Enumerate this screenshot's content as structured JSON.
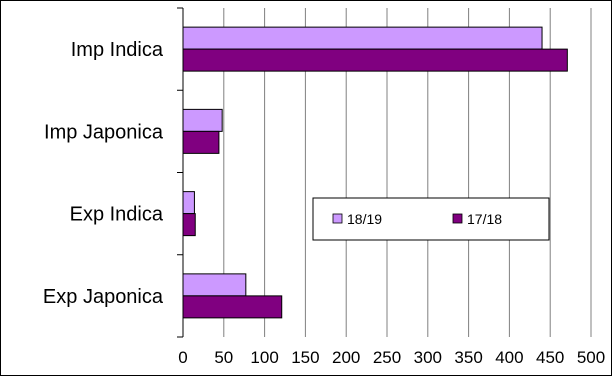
{
  "chart_data": {
    "type": "bar",
    "orientation": "horizontal",
    "categories": [
      "Imp Indica",
      "Imp Japonica",
      "Exp Indica",
      "Exp Japonica"
    ],
    "series": [
      {
        "name": "18/19",
        "values": [
          440,
          48,
          14,
          77
        ],
        "color": "#cc99ff"
      },
      {
        "name": "17/18",
        "values": [
          471,
          44,
          15,
          121
        ],
        "color": "#800080"
      }
    ],
    "x_ticks": [
      "0",
      "50",
      "100",
      "150",
      "200",
      "250",
      "300",
      "350",
      "400",
      "450",
      "500"
    ],
    "xlim": [
      0,
      500
    ],
    "grid": "vertical",
    "legend_position": "center-right",
    "title": "",
    "xlabel": "",
    "ylabel": ""
  }
}
